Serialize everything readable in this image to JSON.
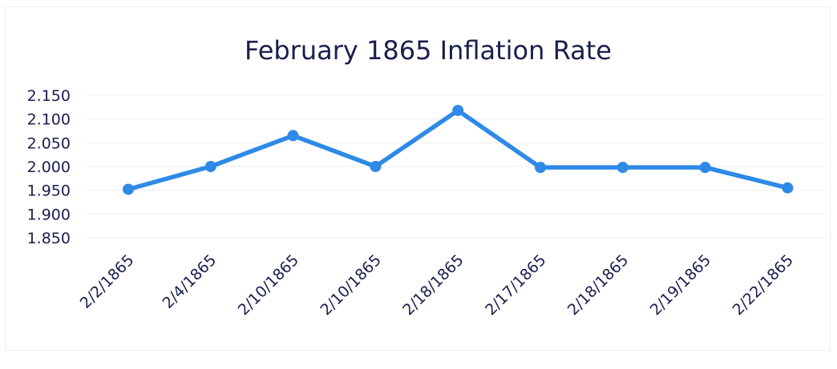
{
  "chart_data": {
    "type": "line",
    "title": "February 1865 Inflation Rate",
    "xlabel": "",
    "ylabel": "",
    "categories": [
      "2/2/1865",
      "2/4/1865",
      "2/10/1865",
      "2/10/1865",
      "2/18/1865",
      "2/17/1865",
      "2/18/1865",
      "2/19/1865",
      "2/22/1865"
    ],
    "series": [
      {
        "values": [
          1.952,
          2.0,
          2.065,
          2.0,
          2.118,
          1.998,
          1.998,
          1.998,
          1.955
        ],
        "color": "#2e8ae6"
      }
    ],
    "ylim": [
      1.85,
      2.15
    ],
    "yticks": [
      1.85,
      1.9,
      1.95,
      2.0,
      2.05,
      2.1,
      2.15
    ],
    "ytick_labels": [
      "1.850",
      "1.900",
      "1.950",
      "2.000",
      "2.050",
      "2.100",
      "2.150"
    ],
    "grid": true,
    "legend": "none",
    "markers": true
  }
}
